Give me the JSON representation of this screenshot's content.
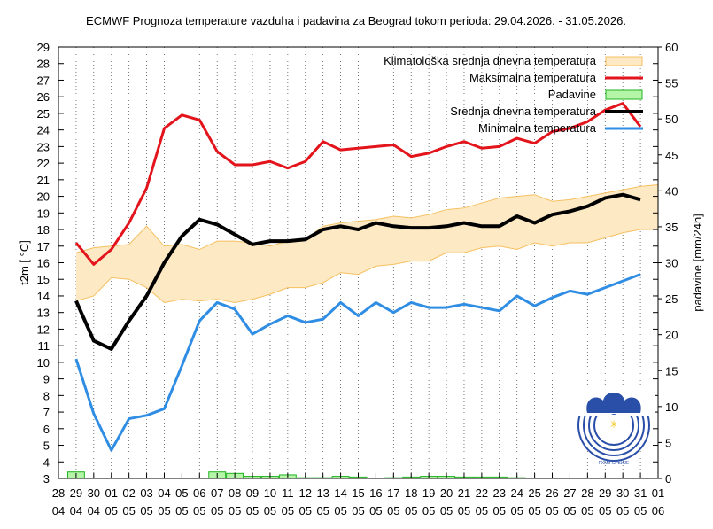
{
  "chart_data": {
    "type": "line",
    "title": "ECMWF Prognoza temperature vazduha i padavina za Beograd tokom perioda: 29.04.2026. - 31.05.2026.",
    "ylabel": "t2m [ °C]",
    "y2label": "padavine [mm/24h]",
    "ylim": [
      3,
      29
    ],
    "y2lim": [
      0,
      60
    ],
    "y_ticks": [
      3,
      4,
      5,
      6,
      7,
      8,
      9,
      10,
      11,
      12,
      13,
      14,
      15,
      16,
      17,
      18,
      19,
      20,
      21,
      22,
      23,
      24,
      25,
      26,
      27,
      28,
      29
    ],
    "y2_ticks": [
      0,
      5,
      10,
      15,
      20,
      25,
      30,
      35,
      40,
      45,
      50,
      55,
      60
    ],
    "x_day_labels": [
      "28",
      "29",
      "30",
      "01",
      "02",
      "03",
      "04",
      "05",
      "06",
      "07",
      "08",
      "09",
      "10",
      "11",
      "12",
      "13",
      "14",
      "15",
      "16",
      "17",
      "18",
      "19",
      "20",
      "21",
      "22",
      "23",
      "24",
      "25",
      "26",
      "27",
      "28",
      "29",
      "30",
      "31",
      "01"
    ],
    "x_month_labels": [
      "04",
      "04",
      "04",
      "05",
      "05",
      "05",
      "05",
      "05",
      "05",
      "05",
      "05",
      "05",
      "05",
      "05",
      "05",
      "05",
      "05",
      "05",
      "05",
      "05",
      "05",
      "05",
      "05",
      "05",
      "05",
      "05",
      "05",
      "05",
      "05",
      "05",
      "05",
      "05",
      "05",
      "05",
      "06"
    ],
    "grid": true,
    "legend_position": "top-right",
    "series": [
      {
        "name": "Klimatološka srednja dnevna temperatura",
        "type": "band",
        "color": "#f5c060",
        "fill": "#fde9c4",
        "lower": [
          13.7,
          14.0,
          15.1,
          15.0,
          14.5,
          13.6,
          13.8,
          13.7,
          13.8,
          13.6,
          13.8,
          14.1,
          14.5,
          14.5,
          14.8,
          15.4,
          15.3,
          15.8,
          15.9,
          16.1,
          16.1,
          16.6,
          16.6,
          16.9,
          17.0,
          16.8,
          17.2,
          17.0,
          17.2,
          17.2,
          17.5,
          17.8,
          18.0,
          18.0
        ],
        "upper": [
          16.6,
          16.9,
          17.0,
          17.1,
          18.2,
          17.0,
          17.1,
          16.8,
          17.3,
          17.3,
          17.2,
          17.0,
          17.3,
          17.4,
          18.2,
          18.4,
          18.5,
          18.6,
          18.8,
          18.7,
          18.9,
          19.2,
          19.3,
          19.6,
          19.9,
          20.0,
          20.1,
          19.7,
          19.8,
          20.0,
          20.2,
          20.4,
          20.6,
          20.7
        ]
      },
      {
        "name": "Maksimalna temperatura",
        "type": "line",
        "color": "#e3141c",
        "values": [
          17.2,
          15.9,
          16.8,
          18.4,
          20.5,
          24.1,
          24.9,
          24.6,
          22.7,
          21.9,
          21.9,
          22.1,
          21.7,
          22.1,
          23.3,
          22.8,
          22.9,
          23.0,
          23.1,
          22.4,
          22.6,
          23.0,
          23.3,
          22.9,
          23.0,
          23.5,
          23.2,
          23.9,
          24.1,
          24.5,
          25.2,
          25.6,
          24.2
        ]
      },
      {
        "name": "Padavine",
        "type": "bar",
        "axis": "y2",
        "color": "#22b422",
        "fill": "#b4f5a8",
        "values": [
          0.9,
          0,
          0,
          0,
          0,
          0,
          0,
          0,
          0.9,
          0.7,
          0.3,
          0.3,
          0.5,
          0.1,
          0.1,
          0.3,
          0.2,
          0,
          0.1,
          0.2,
          0.3,
          0.3,
          0.2,
          0.2,
          0.2,
          0.1,
          0,
          0,
          0,
          0,
          0,
          0,
          0
        ]
      },
      {
        "name": "Srednja dnevna temperatura",
        "type": "line",
        "color": "#000000",
        "values": [
          13.7,
          11.3,
          10.8,
          12.5,
          14.0,
          16.0,
          17.6,
          18.6,
          18.3,
          17.7,
          17.1,
          17.3,
          17.3,
          17.4,
          18.0,
          18.2,
          18.0,
          18.4,
          18.2,
          18.1,
          18.1,
          18.2,
          18.4,
          18.2,
          18.2,
          18.8,
          18.4,
          18.9,
          19.1,
          19.4,
          19.9,
          20.1,
          19.8
        ]
      },
      {
        "name": "Minimalna temperatura",
        "type": "line",
        "color": "#2f8de4",
        "values": [
          10.2,
          6.9,
          4.7,
          6.6,
          6.8,
          7.2,
          9.8,
          12.5,
          13.6,
          13.2,
          11.7,
          12.3,
          12.8,
          12.4,
          12.6,
          13.6,
          12.8,
          13.6,
          13.0,
          13.6,
          13.3,
          13.3,
          13.5,
          13.3,
          13.1,
          14.0,
          13.4,
          13.9,
          14.3,
          14.1,
          14.5,
          14.9,
          15.3
        ]
      }
    ]
  }
}
